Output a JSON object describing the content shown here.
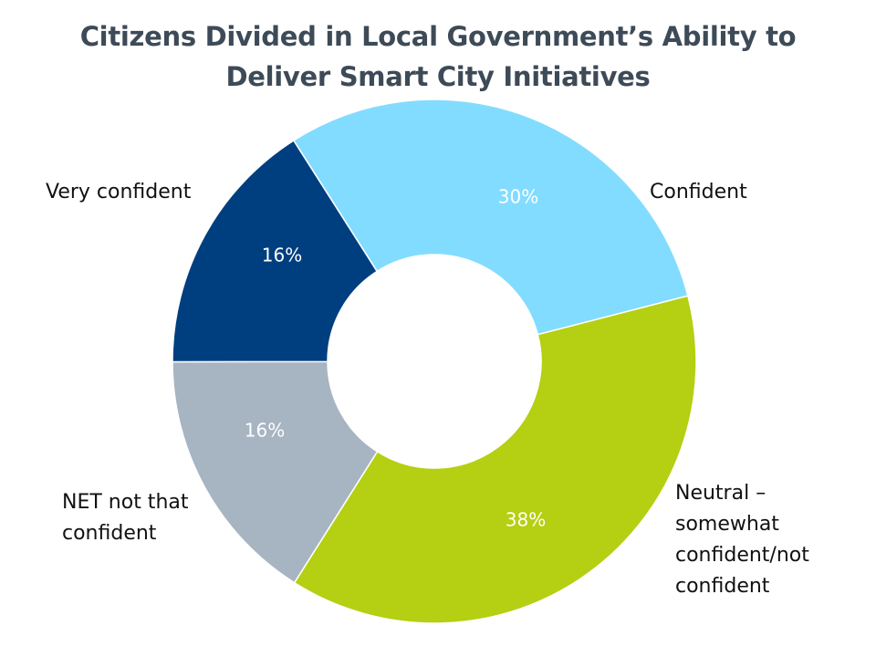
{
  "chart_data": {
    "type": "pie",
    "style": "donut",
    "title_lines": [
      "Citizens Divided in Local Government’s Ability to",
      "Deliver Smart City Initiatives"
    ],
    "categories": [
      "Confident",
      "Neutral – somewhat confident/not confident",
      "NET not that confident",
      "Very confident"
    ],
    "values": [
      30,
      38,
      16,
      16
    ],
    "data_labels": [
      "30%",
      "38%",
      "16%",
      "16%"
    ],
    "colors": [
      "#82dcff",
      "#b5cf12",
      "#a7b4c2",
      "#003f7f"
    ],
    "data_label_colors": [
      "#ffffff",
      "#ffffff",
      "#ffffff",
      "#ffffff"
    ],
    "legend": "none",
    "outer_labels": [
      [
        "Confident"
      ],
      [
        "Neutral –",
        "somewhat",
        "confident/not",
        "confident"
      ],
      [
        "NET not that",
        "confident"
      ],
      [
        "Very confident"
      ]
    ]
  }
}
